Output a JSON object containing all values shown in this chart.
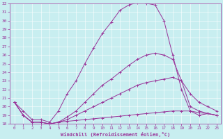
{
  "xlabel": "Windchill (Refroidissement éolien,°C)",
  "bg_color": "#c8eef0",
  "line_color": "#993399",
  "grid_color": "#aadddd",
  "xlim": [
    -0.5,
    23.5
  ],
  "ylim": [
    18,
    32
  ],
  "yticks": [
    18,
    19,
    20,
    21,
    22,
    23,
    24,
    25,
    26,
    27,
    28,
    29,
    30,
    31,
    32
  ],
  "xticks": [
    0,
    1,
    2,
    3,
    4,
    5,
    6,
    7,
    8,
    9,
    10,
    11,
    12,
    13,
    14,
    15,
    16,
    17,
    18,
    19,
    20,
    21,
    22,
    23
  ],
  "series": [
    {
      "x": [
        0,
        1,
        2,
        3,
        4,
        5,
        6,
        7,
        8,
        9,
        10,
        11,
        12,
        13,
        14,
        15,
        16,
        17,
        18,
        19,
        20,
        21,
        22,
        23
      ],
      "y": [
        20.5,
        19.5,
        18.5,
        18.5,
        18.2,
        19.5,
        21.5,
        23.0,
        25.0,
        26.8,
        28.5,
        29.8,
        31.2,
        31.8,
        32.1,
        32.0,
        31.8,
        30.0,
        26.0,
        22.0,
        19.5,
        19.0,
        19.2,
        19.0
      ]
    },
    {
      "x": [
        0,
        1,
        2,
        3,
        4,
        5,
        6,
        7,
        8,
        9,
        10,
        11,
        12,
        13,
        14,
        15,
        16,
        17,
        18,
        19,
        20,
        21,
        22,
        23
      ],
      "y": [
        20.5,
        19.0,
        18.2,
        18.2,
        18.0,
        18.2,
        18.8,
        19.5,
        20.5,
        21.5,
        22.5,
        23.2,
        24.0,
        24.8,
        25.5,
        26.0,
        26.2,
        26.0,
        25.5,
        23.0,
        20.0,
        19.5,
        19.2,
        19.0
      ]
    },
    {
      "x": [
        0,
        1,
        2,
        3,
        4,
        5,
        6,
        7,
        8,
        9,
        10,
        11,
        12,
        13,
        14,
        15,
        16,
        17,
        18,
        19,
        20,
        21,
        22,
        23
      ],
      "y": [
        20.5,
        19.0,
        18.2,
        18.2,
        18.0,
        18.2,
        18.5,
        19.0,
        19.5,
        20.0,
        20.5,
        21.0,
        21.5,
        22.0,
        22.5,
        22.8,
        23.0,
        23.2,
        23.4,
        23.0,
        21.5,
        20.5,
        20.0,
        19.5
      ]
    },
    {
      "x": [
        0,
        1,
        2,
        3,
        4,
        5,
        6,
        7,
        8,
        9,
        10,
        11,
        12,
        13,
        14,
        15,
        16,
        17,
        18,
        19,
        20,
        21,
        22,
        23
      ],
      "y": [
        20.5,
        19.0,
        18.2,
        18.2,
        18.0,
        18.2,
        18.3,
        18.4,
        18.5,
        18.6,
        18.7,
        18.8,
        18.9,
        19.0,
        19.1,
        19.2,
        19.3,
        19.4,
        19.5,
        19.5,
        19.5,
        19.3,
        19.2,
        19.0
      ]
    }
  ]
}
